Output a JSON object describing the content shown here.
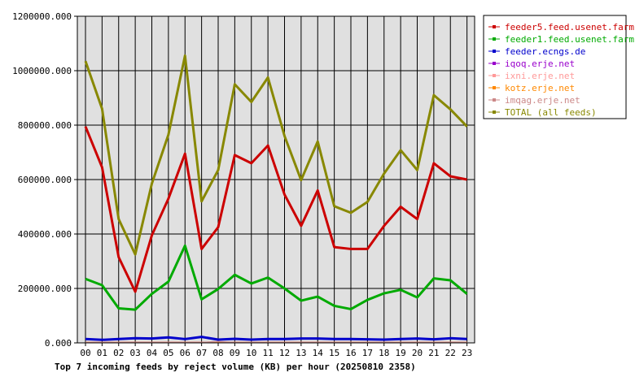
{
  "chart_data": {
    "type": "line",
    "title": "Top 7 incoming feeds by reject volume (KB) per hour (20250810 2358)",
    "xlabel": "",
    "ylabel": "",
    "categories": [
      "00",
      "01",
      "02",
      "03",
      "04",
      "05",
      "06",
      "07",
      "08",
      "09",
      "10",
      "11",
      "12",
      "13",
      "14",
      "15",
      "16",
      "17",
      "18",
      "19",
      "20",
      "21",
      "22",
      "23"
    ],
    "ylim": [
      0,
      1200000
    ],
    "yticks": [
      0,
      200000,
      400000,
      600000,
      800000,
      1000000,
      1200000
    ],
    "ytick_labels": [
      "0.000",
      "200000.000",
      "400000.000",
      "600000.000",
      "800000.000",
      "1000000.000",
      "1200000.000"
    ],
    "grid": true,
    "legend_position": "right",
    "series": [
      {
        "name": "feeder5.feed.usenet.farm",
        "color": "#cc0000",
        "thick": true,
        "values": [
          795000,
          645000,
          315000,
          188000,
          395000,
          530000,
          695000,
          345000,
          425000,
          690000,
          660000,
          725000,
          545000,
          430000,
          560000,
          352000,
          345000,
          345000,
          430000,
          500000,
          455000,
          660000,
          612000,
          600000
        ]
      },
      {
        "name": "feeder1.feed.usenet.farm",
        "color": "#00aa00",
        "thick": true,
        "values": [
          235000,
          212000,
          127000,
          122000,
          180000,
          225000,
          357000,
          160000,
          198000,
          250000,
          218000,
          240000,
          200000,
          155000,
          170000,
          136000,
          124000,
          158000,
          182000,
          195000,
          167000,
          237000,
          230000,
          180000
        ]
      },
      {
        "name": "feeder.ecngs.de",
        "color": "#0000cc",
        "thick": true,
        "values": [
          14000,
          11000,
          14000,
          17000,
          16000,
          20000,
          14000,
          22000,
          12000,
          15000,
          12000,
          14000,
          14000,
          16000,
          16000,
          14000,
          14000,
          13000,
          12000,
          14000,
          16000,
          13000,
          17000,
          14000
        ]
      },
      {
        "name": "iqoq.erje.net",
        "color": "#9900cc",
        "thick": false,
        "values": [
          2000,
          2000,
          2000,
          2000,
          2000,
          2000,
          2000,
          2000,
          2000,
          2000,
          2000,
          2000,
          2000,
          2000,
          2000,
          2000,
          2000,
          2000,
          2000,
          2000,
          2000,
          2000,
          2000,
          2000
        ]
      },
      {
        "name": "ixni.erje.net",
        "color": "#ff9999",
        "thick": false,
        "values": [
          1500,
          1500,
          1500,
          1500,
          1500,
          1500,
          1500,
          1500,
          1500,
          1500,
          1500,
          1500,
          1500,
          1500,
          1500,
          1500,
          1500,
          1500,
          1500,
          1500,
          1500,
          1500,
          1500,
          1500
        ]
      },
      {
        "name": "kotz.erje.net",
        "color": "#ff8800",
        "thick": false,
        "values": [
          1500,
          1500,
          1500,
          1500,
          1500,
          1500,
          1500,
          1500,
          1500,
          1500,
          1500,
          1500,
          1500,
          1500,
          1500,
          1500,
          1500,
          1500,
          1500,
          1500,
          1500,
          1500,
          1500,
          1500
        ]
      },
      {
        "name": "imqag.erje.net",
        "color": "#cc8888",
        "thick": false,
        "values": [
          1500,
          1500,
          1500,
          1500,
          1500,
          1500,
          1500,
          1500,
          5000,
          1500,
          1500,
          1500,
          1500,
          1500,
          1500,
          1500,
          1500,
          1500,
          1500,
          1500,
          1500,
          1500,
          1500,
          1500
        ]
      },
      {
        "name": "TOTAL (all feeds)",
        "color": "#888800",
        "thick": true,
        "values": [
          1035000,
          860000,
          455000,
          325000,
          585000,
          765000,
          1055000,
          520000,
          635000,
          950000,
          885000,
          975000,
          760000,
          598000,
          740000,
          502000,
          478000,
          518000,
          622000,
          708000,
          635000,
          910000,
          858000,
          795000
        ]
      }
    ]
  }
}
